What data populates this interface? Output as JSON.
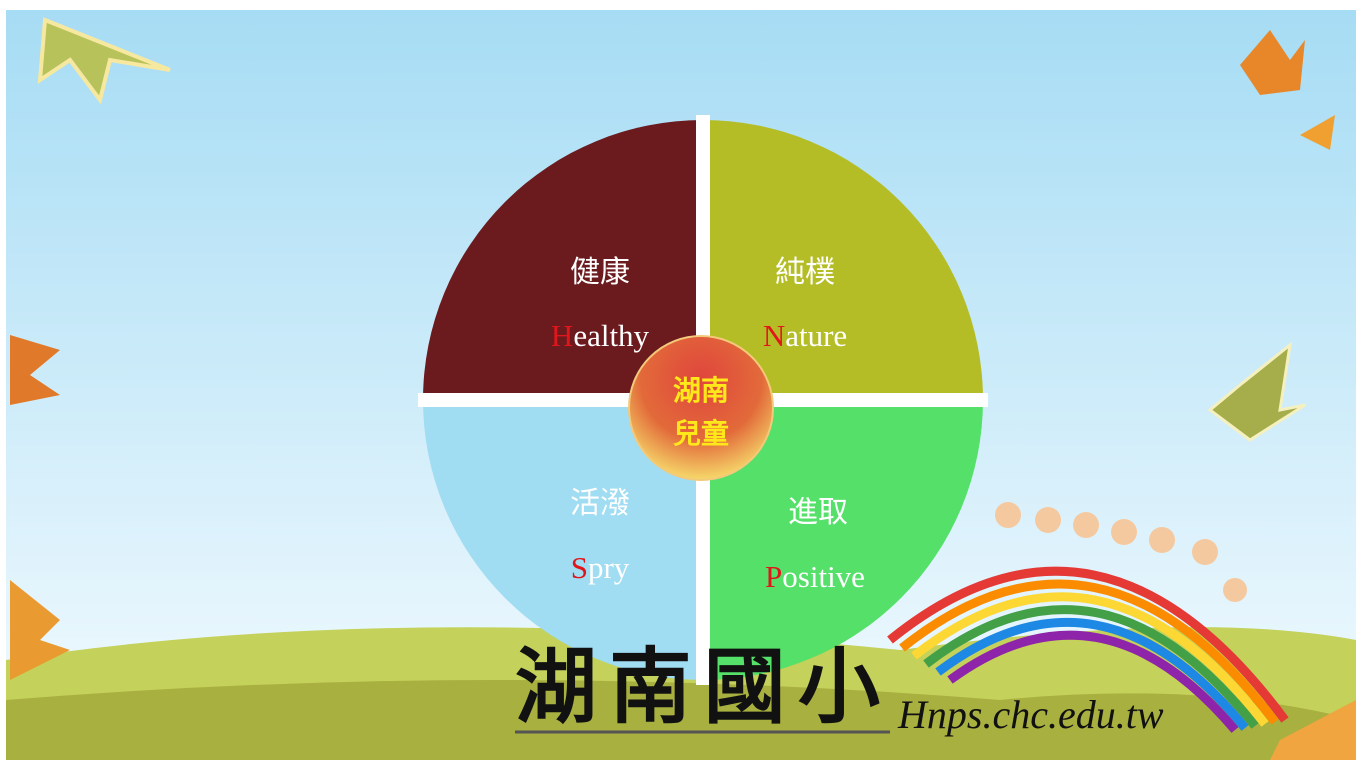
{
  "center": {
    "lines": [
      "湖南",
      "兒童"
    ]
  },
  "quadrants": [
    {
      "label_zh": "健康",
      "initial": "H",
      "rest": "ealthy"
    },
    {
      "label_zh": "純樸",
      "initial": "N",
      "rest": "ature"
    },
    {
      "label_zh": "活潑",
      "initial": "S",
      "rest": "pry"
    },
    {
      "label_zh": "進取",
      "initial": "P",
      "rest": "ositive"
    }
  ],
  "footer": {
    "school": "湖南國小",
    "url": "Hnps.chc.edu.tw"
  }
}
